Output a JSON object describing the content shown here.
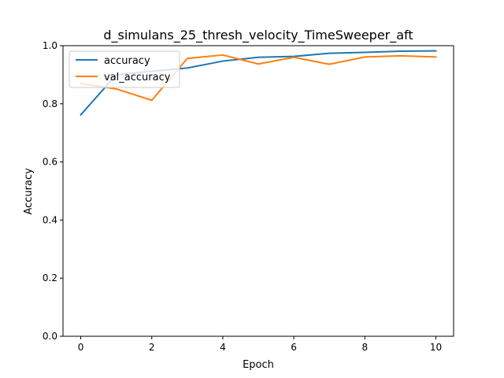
{
  "chart_data": {
    "type": "line",
    "title": "d_simulans_25_thresh_velocity_TimeSweeper_aft",
    "xlabel": "Epoch",
    "ylabel": "Accuracy",
    "x": [
      0,
      1,
      2,
      3,
      4,
      5,
      6,
      7,
      8,
      9,
      10
    ],
    "xlim": [
      -0.5,
      10.5
    ],
    "ylim": [
      0.0,
      1.0
    ],
    "xticks": [
      0,
      2,
      4,
      6,
      8,
      10
    ],
    "yticks": [
      0.0,
      0.2,
      0.4,
      0.6,
      0.8,
      1.0
    ],
    "xtick_labels": [
      "0",
      "2",
      "4",
      "6",
      "8",
      "10"
    ],
    "ytick_labels": [
      "0.0",
      "0.2",
      "0.4",
      "0.6",
      "0.8",
      "1.0"
    ],
    "grid": false,
    "legend_position": "upper-left",
    "series": [
      {
        "name": "accuracy",
        "color": "#1f77b4",
        "values": [
          0.762,
          0.9,
          0.912,
          0.923,
          0.947,
          0.96,
          0.963,
          0.974,
          0.977,
          0.981,
          0.982
        ]
      },
      {
        "name": "val_accuracy",
        "color": "#ff7f0e",
        "values": [
          0.87,
          0.851,
          0.812,
          0.956,
          0.968,
          0.937,
          0.96,
          0.936,
          0.961,
          0.965,
          0.961
        ]
      }
    ]
  }
}
